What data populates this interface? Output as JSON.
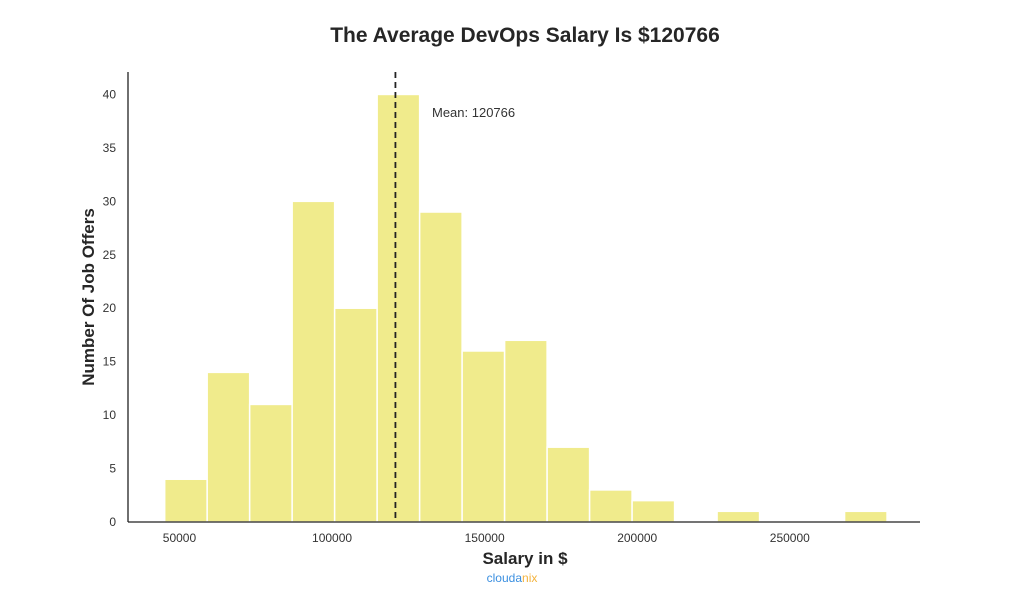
{
  "chart_data": {
    "type": "bar",
    "subtype": "histogram",
    "title": "The Average DevOps Salary Is $120766",
    "xlabel": "Salary in $",
    "ylabel": "Number Of Job Offers",
    "bin_start": 45150,
    "bin_width": 13925,
    "values": [
      4,
      14,
      11,
      30,
      20,
      40,
      29,
      16,
      17,
      7,
      3,
      2,
      0,
      1,
      0,
      0,
      1
    ],
    "xlim": [
      33130,
      292670
    ],
    "ylim": [
      0,
      42.1
    ],
    "xticks": [
      50000,
      100000,
      150000,
      200000,
      250000
    ],
    "yticks": [
      0,
      5,
      10,
      15,
      20,
      25,
      30,
      35,
      40
    ],
    "mean": 120766,
    "mean_label": "Mean: 120766",
    "bar_color": "#f0eb8c",
    "grid": false
  },
  "logo": {
    "part1": "clouda",
    "part2": "nix"
  }
}
